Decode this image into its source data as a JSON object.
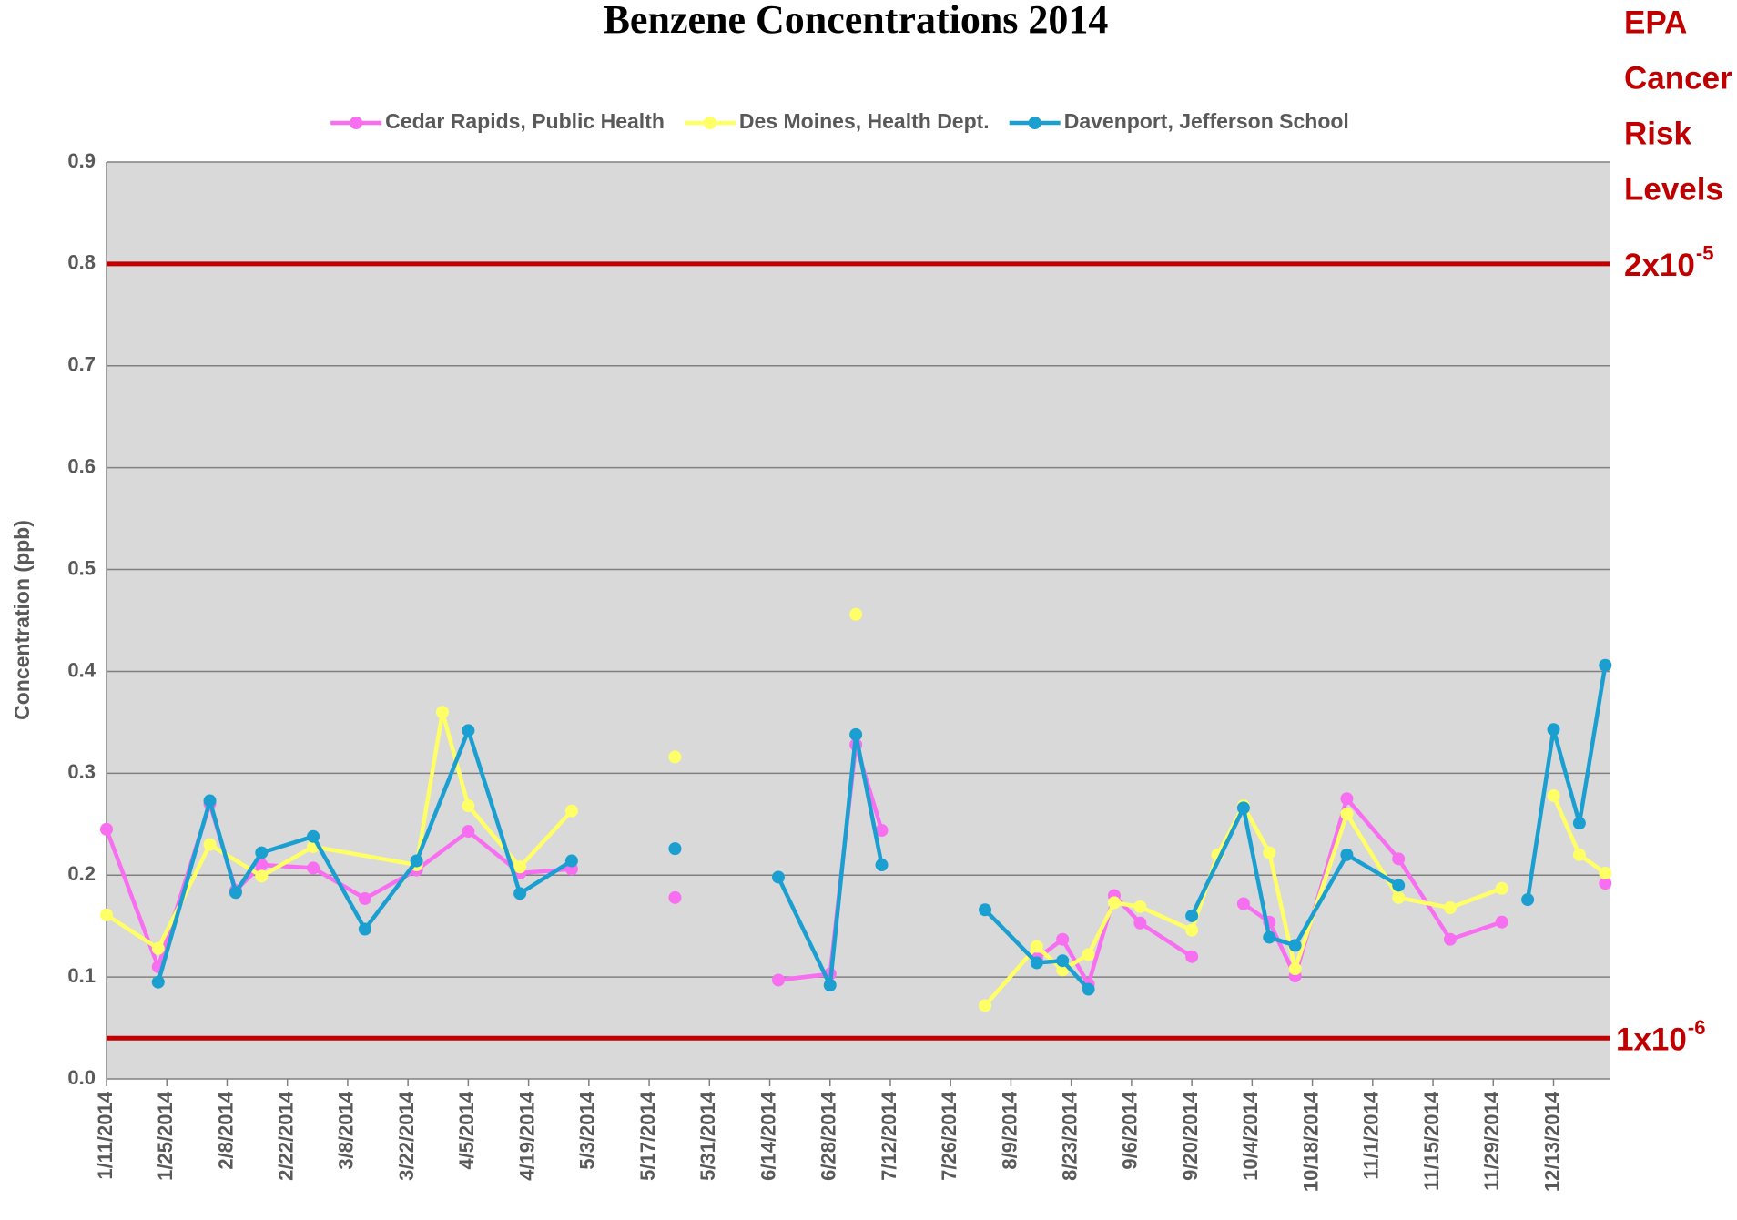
{
  "chart_data": {
    "type": "line",
    "title": "Benzene Concentrations 2014",
    "y_label": "Concentration (ppb)",
    "annotation_lines": [
      "EPA",
      "Cancer",
      "Risk",
      "Levels"
    ],
    "xlim": [
      "1/11/2014",
      "12/26/2014"
    ],
    "xticks": [
      "1/11/2014",
      "1/25/2014",
      "2/8/2014",
      "2/22/2014",
      "3/8/2014",
      "3/22/2014",
      "4/5/2014",
      "4/19/2014",
      "5/3/2014",
      "5/17/2014",
      "5/31/2014",
      "6/14/2014",
      "6/28/2014",
      "7/12/2014",
      "7/26/2014",
      "8/9/2014",
      "8/23/2014",
      "9/6/2014",
      "9/20/2014",
      "10/4/2014",
      "10/18/2014",
      "11/1/2014",
      "11/15/2014",
      "11/29/2014",
      "12/13/2014"
    ],
    "ylim": [
      0,
      0.9
    ],
    "yticks": [
      {
        "value": 0,
        "label": "0.0"
      },
      0.1,
      0.2,
      0.3,
      0.4,
      0.5,
      0.6,
      0.7,
      0.8,
      0.9
    ],
    "grid": true,
    "legend": "top",
    "reference_lines": [
      {
        "value": 0.8,
        "label": "2x10",
        "exponent": "-5",
        "color": "#c00000"
      },
      {
        "value": 0.04,
        "label": "1x10",
        "exponent": "-6",
        "color": "#c00000"
      }
    ],
    "series": [
      {
        "name": "Cedar Rapids, Public Health",
        "color": "#f76ef0",
        "x": [
          "1/11/2014",
          "1/23/2014",
          "2/4/2014",
          "2/10/2014",
          "2/16/2014",
          "2/28/2014",
          "3/12/2014",
          "3/24/2014",
          "4/5/2014",
          "4/17/2014",
          "4/29/2014",
          "5/11/2014",
          "5/23/2014",
          "6/4/2014",
          "6/16/2014",
          "6/28/2014",
          "7/4/2014",
          "7/10/2014",
          "7/22/2014",
          "8/15/2014",
          "8/21/2014",
          "8/27/2014",
          "9/2/2014",
          "9/8/2014",
          "9/20/2014",
          "9/26/2014",
          "10/2/2014",
          "10/8/2014",
          "10/14/2014",
          "10/26/2014",
          "11/7/2014",
          "11/19/2014",
          "12/1/2014",
          "12/13/2014",
          "12/25/2014"
        ],
        "values": [
          0.245,
          0.11,
          0.27,
          0.185,
          0.21,
          0.207,
          0.177,
          0.205,
          0.243,
          0.202,
          0.206,
          null,
          0.178,
          null,
          0.097,
          0.103,
          0.328,
          0.244,
          null,
          0.118,
          0.137,
          0.093,
          0.18,
          0.153,
          0.12,
          null,
          0.172,
          0.154,
          0.101,
          0.275,
          0.216,
          0.137,
          0.154,
          null,
          0.192
        ]
      },
      {
        "name": "Des Moines, Health Dept.",
        "color": "#ffff66",
        "x": [
          "1/11/2014",
          "1/23/2014",
          "2/4/2014",
          "2/16/2014",
          "2/28/2014",
          "3/24/2014",
          "3/30/2014",
          "4/5/2014",
          "4/17/2014",
          "4/29/2014",
          "5/11/2014",
          "5/23/2014",
          "6/4/2014",
          "7/4/2014",
          "7/22/2014",
          "8/3/2014",
          "8/15/2014",
          "8/21/2014",
          "8/27/2014",
          "9/2/2014",
          "9/8/2014",
          "9/20/2014",
          "9/26/2014",
          "10/2/2014",
          "10/8/2014",
          "10/14/2014",
          "10/26/2014",
          "11/7/2014",
          "11/19/2014",
          "12/1/2014",
          "12/7/2014",
          "12/13/2014",
          "12/19/2014",
          "12/25/2014"
        ],
        "values": [
          0.161,
          0.128,
          0.23,
          0.199,
          0.228,
          0.21,
          0.36,
          0.268,
          0.208,
          0.263,
          null,
          0.316,
          null,
          0.456,
          null,
          0.072,
          0.13,
          0.107,
          0.122,
          0.173,
          0.169,
          0.146,
          0.22,
          0.268,
          0.222,
          0.108,
          0.26,
          0.178,
          0.168,
          0.187,
          null,
          0.278,
          0.22,
          0.202
        ]
      },
      {
        "name": "Davenport, Jefferson School",
        "color": "#1a9fd0",
        "x": [
          "1/23/2014",
          "2/4/2014",
          "2/10/2014",
          "2/16/2014",
          "2/28/2014",
          "3/12/2014",
          "3/24/2014",
          "4/5/2014",
          "4/17/2014",
          "4/29/2014",
          "5/11/2014",
          "5/23/2014",
          "6/4/2014",
          "6/16/2014",
          "6/28/2014",
          "7/4/2014",
          "7/10/2014",
          "7/22/2014",
          "8/3/2014",
          "8/15/2014",
          "8/21/2014",
          "8/27/2014",
          "9/8/2014",
          "9/20/2014",
          "10/2/2014",
          "10/8/2014",
          "10/14/2014",
          "10/26/2014",
          "11/7/2014",
          "11/19/2014",
          "12/7/2014",
          "12/13/2014",
          "12/19/2014",
          "12/25/2014"
        ],
        "values": [
          0.095,
          0.273,
          0.183,
          0.222,
          0.238,
          0.147,
          0.214,
          0.342,
          0.182,
          0.214,
          null,
          0.226,
          null,
          0.198,
          0.092,
          0.338,
          0.21,
          null,
          0.166,
          0.114,
          0.116,
          0.088,
          null,
          0.16,
          0.266,
          0.139,
          0.131,
          0.22,
          0.19,
          null,
          0.176,
          0.343,
          0.251,
          0.406
        ]
      }
    ]
  }
}
